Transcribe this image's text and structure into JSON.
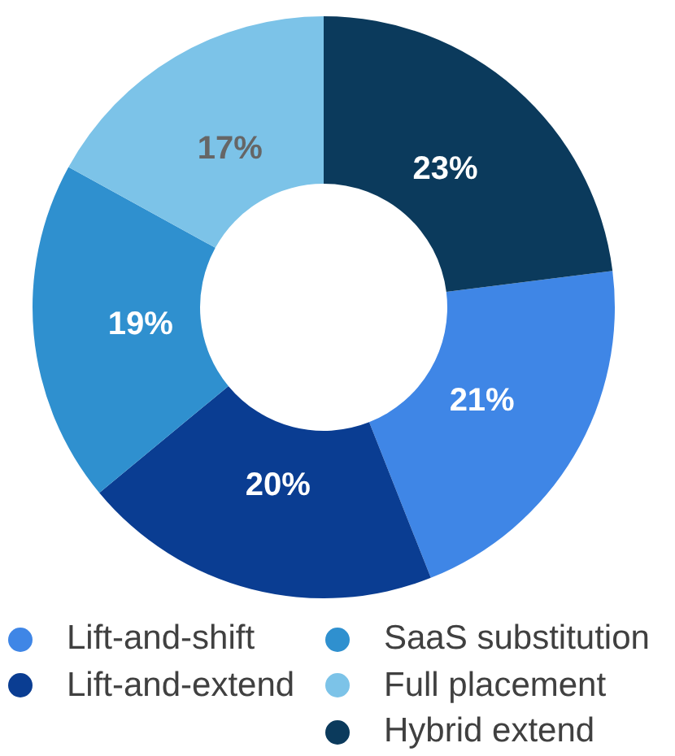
{
  "chart_data": {
    "type": "donut",
    "categories": [
      "Lift-and-shift",
      "Lift-and-extend",
      "SaaS substitution",
      "Full placement",
      "Hybrid extend"
    ],
    "values": [
      21,
      20,
      19,
      17,
      23
    ],
    "value_labels": [
      "21%",
      "20%",
      "19%",
      "17%",
      "23%"
    ],
    "colors": [
      "#3f86e6",
      "#0a3d92",
      "#2f90cf",
      "#7cc3e8",
      "#0b3a5c"
    ],
    "legend": "bottom"
  }
}
